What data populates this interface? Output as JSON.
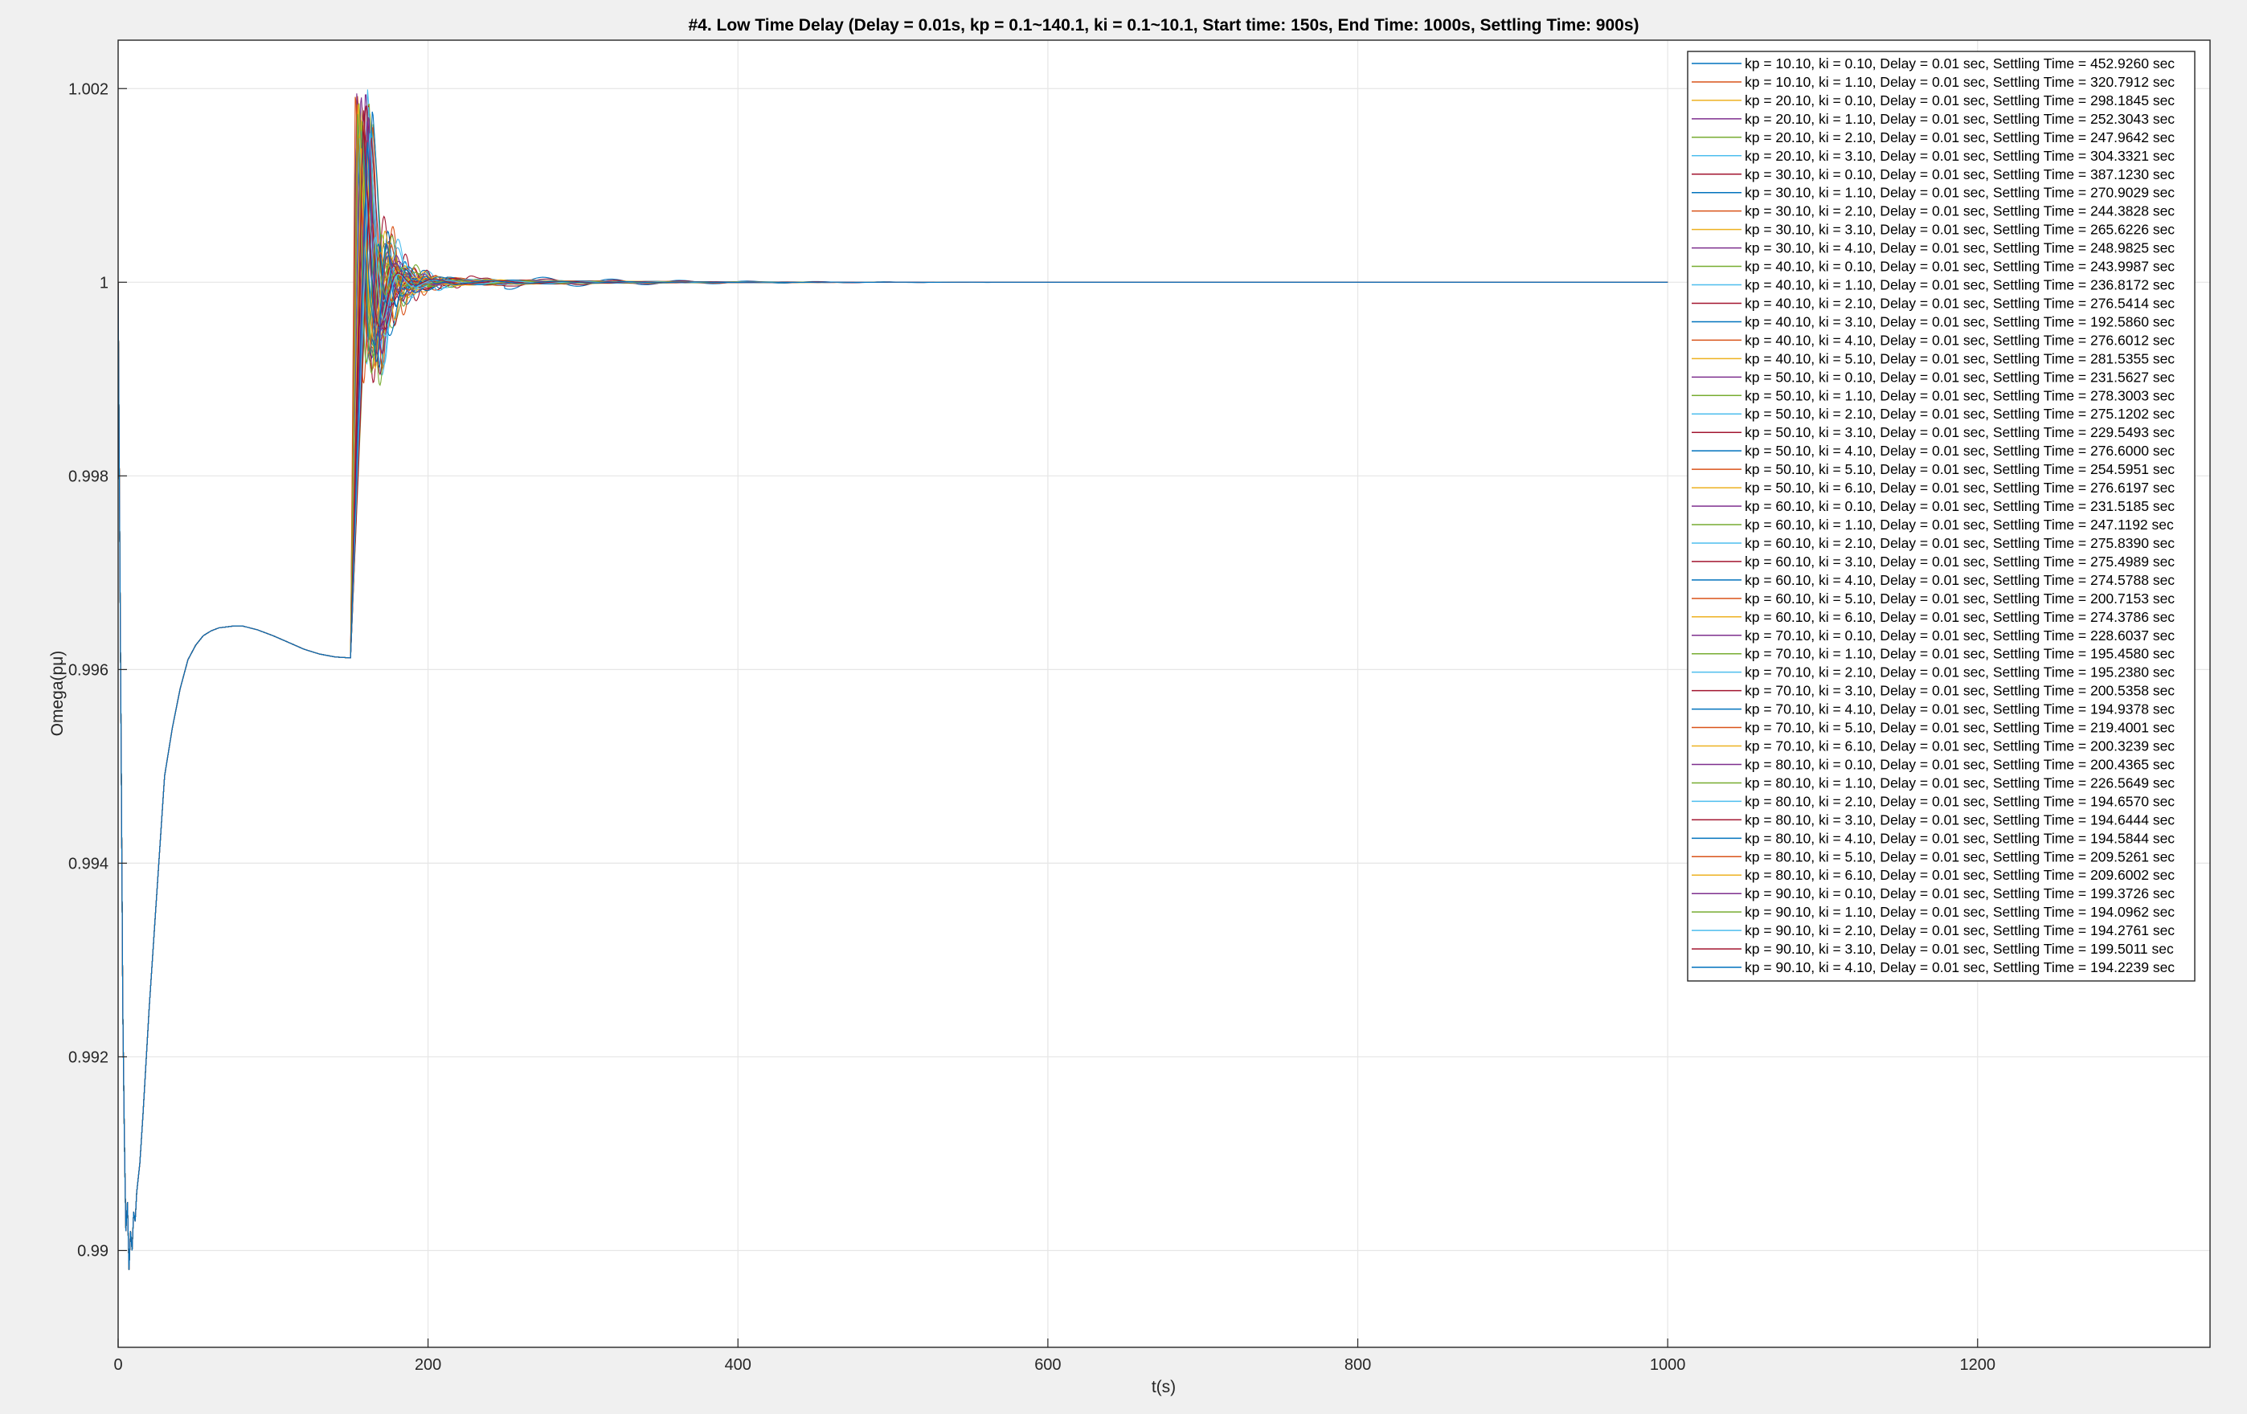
{
  "chart_data": {
    "type": "line",
    "title": "#4. Low Time Delay (Delay = 0.01s, kp = 0.1~140.1, ki = 0.1~10.1, Start time: 150s, End Time: 1000s, Settling Time: 900s)",
    "xlabel": "t(s)",
    "ylabel": "Omega(pμ)",
    "xlim": [
      0,
      1350
    ],
    "ylim": [
      0.989,
      1.0025
    ],
    "xticks": [
      "0",
      "200",
      "400",
      "600",
      "800",
      "1000",
      "1200"
    ],
    "xtick_values": [
      0,
      200,
      400,
      600,
      800,
      1000,
      1200
    ],
    "yticks": [
      "0.99",
      "0.992",
      "0.994",
      "0.996",
      "0.998",
      "1",
      "1.002"
    ],
    "ytick_values": [
      0.99,
      0.992,
      0.994,
      0.996,
      0.998,
      1.0,
      1.002
    ],
    "grid": true,
    "legend_position": "top-right",
    "colors": [
      "#0072bd",
      "#d95319",
      "#edb120",
      "#7e2f8e",
      "#77ac30",
      "#4dbeee",
      "#a2142f"
    ],
    "common_prefix": {
      "x": [
        0,
        1,
        2,
        3,
        4,
        5,
        6,
        7,
        8,
        9,
        10,
        11,
        12,
        14,
        16,
        20,
        25,
        30,
        35,
        40,
        45,
        50,
        55,
        60,
        65,
        70,
        75,
        80,
        85,
        90,
        100,
        110,
        120,
        130,
        140,
        150
      ],
      "y": [
        1.0,
        0.9975,
        0.995,
        0.9925,
        0.9912,
        0.9902,
        0.9905,
        0.9898,
        0.9902,
        0.99,
        0.9904,
        0.9903,
        0.9906,
        0.9909,
        0.9914,
        0.9925,
        0.9937,
        0.9949,
        0.9954,
        0.9958,
        0.9961,
        0.99625,
        0.99635,
        0.9964,
        0.99643,
        0.99644,
        0.99645,
        0.99645,
        0.99643,
        0.99641,
        0.99635,
        0.99628,
        0.99621,
        0.99616,
        0.99613,
        0.99612
      ]
    },
    "series": [
      {
        "name": "kp = 10.10, ki = 0.10, Delay = 0.01 sec, Settling Time = 452.9260 sec",
        "settling_time": 452.926
      },
      {
        "name": "kp = 10.10, ki = 1.10, Delay = 0.01 sec, Settling Time = 320.7912 sec",
        "settling_time": 320.7912
      },
      {
        "name": "kp = 20.10, ki = 0.10, Delay = 0.01 sec, Settling Time = 298.1845 sec",
        "settling_time": 298.1845
      },
      {
        "name": "kp = 20.10, ki = 1.10, Delay = 0.01 sec, Settling Time = 252.3043 sec",
        "settling_time": 252.3043
      },
      {
        "name": "kp = 20.10, ki = 2.10, Delay = 0.01 sec, Settling Time = 247.9642 sec",
        "settling_time": 247.9642
      },
      {
        "name": "kp = 20.10, ki = 3.10, Delay = 0.01 sec, Settling Time = 304.3321 sec",
        "settling_time": 304.3321
      },
      {
        "name": "kp = 30.10, ki = 0.10, Delay = 0.01 sec, Settling Time = 387.1230 sec",
        "settling_time": 387.123
      },
      {
        "name": "kp = 30.10, ki = 1.10, Delay = 0.01 sec, Settling Time = 270.9029 sec",
        "settling_time": 270.9029
      },
      {
        "name": "kp = 30.10, ki = 2.10, Delay = 0.01 sec, Settling Time = 244.3828 sec",
        "settling_time": 244.3828
      },
      {
        "name": "kp = 30.10, ki = 3.10, Delay = 0.01 sec, Settling Time = 265.6226 sec",
        "settling_time": 265.6226
      },
      {
        "name": "kp = 30.10, ki = 4.10, Delay = 0.01 sec, Settling Time = 248.9825 sec",
        "settling_time": 248.9825
      },
      {
        "name": "kp = 40.10, ki = 0.10, Delay = 0.01 sec, Settling Time = 243.9987 sec",
        "settling_time": 243.9987
      },
      {
        "name": "kp = 40.10, ki = 1.10, Delay = 0.01 sec, Settling Time = 236.8172 sec",
        "settling_time": 236.8172
      },
      {
        "name": "kp = 40.10, ki = 2.10, Delay = 0.01 sec, Settling Time = 276.5414 sec",
        "settling_time": 276.5414
      },
      {
        "name": "kp = 40.10, ki = 3.10, Delay = 0.01 sec, Settling Time = 192.5860 sec",
        "settling_time": 192.586
      },
      {
        "name": "kp = 40.10, ki = 4.10, Delay = 0.01 sec, Settling Time = 276.6012 sec",
        "settling_time": 276.6012
      },
      {
        "name": "kp = 40.10, ki = 5.10, Delay = 0.01 sec, Settling Time = 281.5355 sec",
        "settling_time": 281.5355
      },
      {
        "name": "kp = 50.10, ki = 0.10, Delay = 0.01 sec, Settling Time = 231.5627 sec",
        "settling_time": 231.5627
      },
      {
        "name": "kp = 50.10, ki = 1.10, Delay = 0.01 sec, Settling Time = 278.3003 sec",
        "settling_time": 278.3003
      },
      {
        "name": "kp = 50.10, ki = 2.10, Delay = 0.01 sec, Settling Time = 275.1202 sec",
        "settling_time": 275.1202
      },
      {
        "name": "kp = 50.10, ki = 3.10, Delay = 0.01 sec, Settling Time = 229.5493 sec",
        "settling_time": 229.5493
      },
      {
        "name": "kp = 50.10, ki = 4.10, Delay = 0.01 sec, Settling Time = 276.6000 sec",
        "settling_time": 276.6
      },
      {
        "name": "kp = 50.10, ki = 5.10, Delay = 0.01 sec, Settling Time = 254.5951 sec",
        "settling_time": 254.5951
      },
      {
        "name": "kp = 50.10, ki = 6.10, Delay = 0.01 sec, Settling Time = 276.6197 sec",
        "settling_time": 276.6197
      },
      {
        "name": "kp = 60.10, ki = 0.10, Delay = 0.01 sec, Settling Time = 231.5185 sec",
        "settling_time": 231.5185
      },
      {
        "name": "kp = 60.10, ki = 1.10, Delay = 0.01 sec, Settling Time = 247.1192 sec",
        "settling_time": 247.1192
      },
      {
        "name": "kp = 60.10, ki = 2.10, Delay = 0.01 sec, Settling Time = 275.8390 sec",
        "settling_time": 275.839
      },
      {
        "name": "kp = 60.10, ki = 3.10, Delay = 0.01 sec, Settling Time = 275.4989 sec",
        "settling_time": 275.4989
      },
      {
        "name": "kp = 60.10, ki = 4.10, Delay = 0.01 sec, Settling Time = 274.5788 sec",
        "settling_time": 274.5788
      },
      {
        "name": "kp = 60.10, ki = 5.10, Delay = 0.01 sec, Settling Time = 200.7153 sec",
        "settling_time": 200.7153
      },
      {
        "name": "kp = 60.10, ki = 6.10, Delay = 0.01 sec, Settling Time = 274.3786 sec",
        "settling_time": 274.3786
      },
      {
        "name": "kp = 70.10, ki = 0.10, Delay = 0.01 sec, Settling Time = 228.6037 sec",
        "settling_time": 228.6037
      },
      {
        "name": "kp = 70.10, ki = 1.10, Delay = 0.01 sec, Settling Time = 195.4580 sec",
        "settling_time": 195.458
      },
      {
        "name": "kp = 70.10, ki = 2.10, Delay = 0.01 sec, Settling Time = 195.2380 sec",
        "settling_time": 195.238
      },
      {
        "name": "kp = 70.10, ki = 3.10, Delay = 0.01 sec, Settling Time = 200.5358 sec",
        "settling_time": 200.5358
      },
      {
        "name": "kp = 70.10, ki = 4.10, Delay = 0.01 sec, Settling Time = 194.9378 sec",
        "settling_time": 194.9378
      },
      {
        "name": "kp = 70.10, ki = 5.10, Delay = 0.01 sec, Settling Time = 219.4001 sec",
        "settling_time": 219.4001
      },
      {
        "name": "kp = 70.10, ki = 6.10, Delay = 0.01 sec, Settling Time = 200.3239 sec",
        "settling_time": 200.3239
      },
      {
        "name": "kp = 80.10, ki = 0.10, Delay = 0.01 sec, Settling Time = 200.4365 sec",
        "settling_time": 200.4365
      },
      {
        "name": "kp = 80.10, ki = 1.10, Delay = 0.01 sec, Settling Time = 226.5649 sec",
        "settling_time": 226.5649
      },
      {
        "name": "kp = 80.10, ki = 2.10, Delay = 0.01 sec, Settling Time = 194.6570 sec",
        "settling_time": 194.657
      },
      {
        "name": "kp = 80.10, ki = 3.10, Delay = 0.01 sec, Settling Time = 194.6444 sec",
        "settling_time": 194.6444
      },
      {
        "name": "kp = 80.10, ki = 4.10, Delay = 0.01 sec, Settling Time = 194.5844 sec",
        "settling_time": 194.5844
      },
      {
        "name": "kp = 80.10, ki = 5.10, Delay = 0.01 sec, Settling Time = 209.5261 sec",
        "settling_time": 209.5261
      },
      {
        "name": "kp = 80.10, ki = 6.10, Delay = 0.01 sec, Settling Time = 209.6002 sec",
        "settling_time": 209.6002
      },
      {
        "name": "kp = 90.10, ki = 0.10, Delay = 0.01 sec, Settling Time = 199.3726 sec",
        "settling_time": 199.3726
      },
      {
        "name": "kp = 90.10, ki = 1.10, Delay = 0.01 sec, Settling Time = 194.0962 sec",
        "settling_time": 194.0962
      },
      {
        "name": "kp = 90.10, ki = 2.10, Delay = 0.01 sec, Settling Time = 194.2761 sec",
        "settling_time": 194.2761
      },
      {
        "name": "kp = 90.10, ki = 3.10, Delay = 0.01 sec, Settling Time = 199.5011 sec",
        "settling_time": 199.5011
      },
      {
        "name": "kp = 90.10, ki = 4.10, Delay = 0.01 sec, Settling Time = 194.2239 sec",
        "settling_time": 194.2239
      }
    ]
  }
}
